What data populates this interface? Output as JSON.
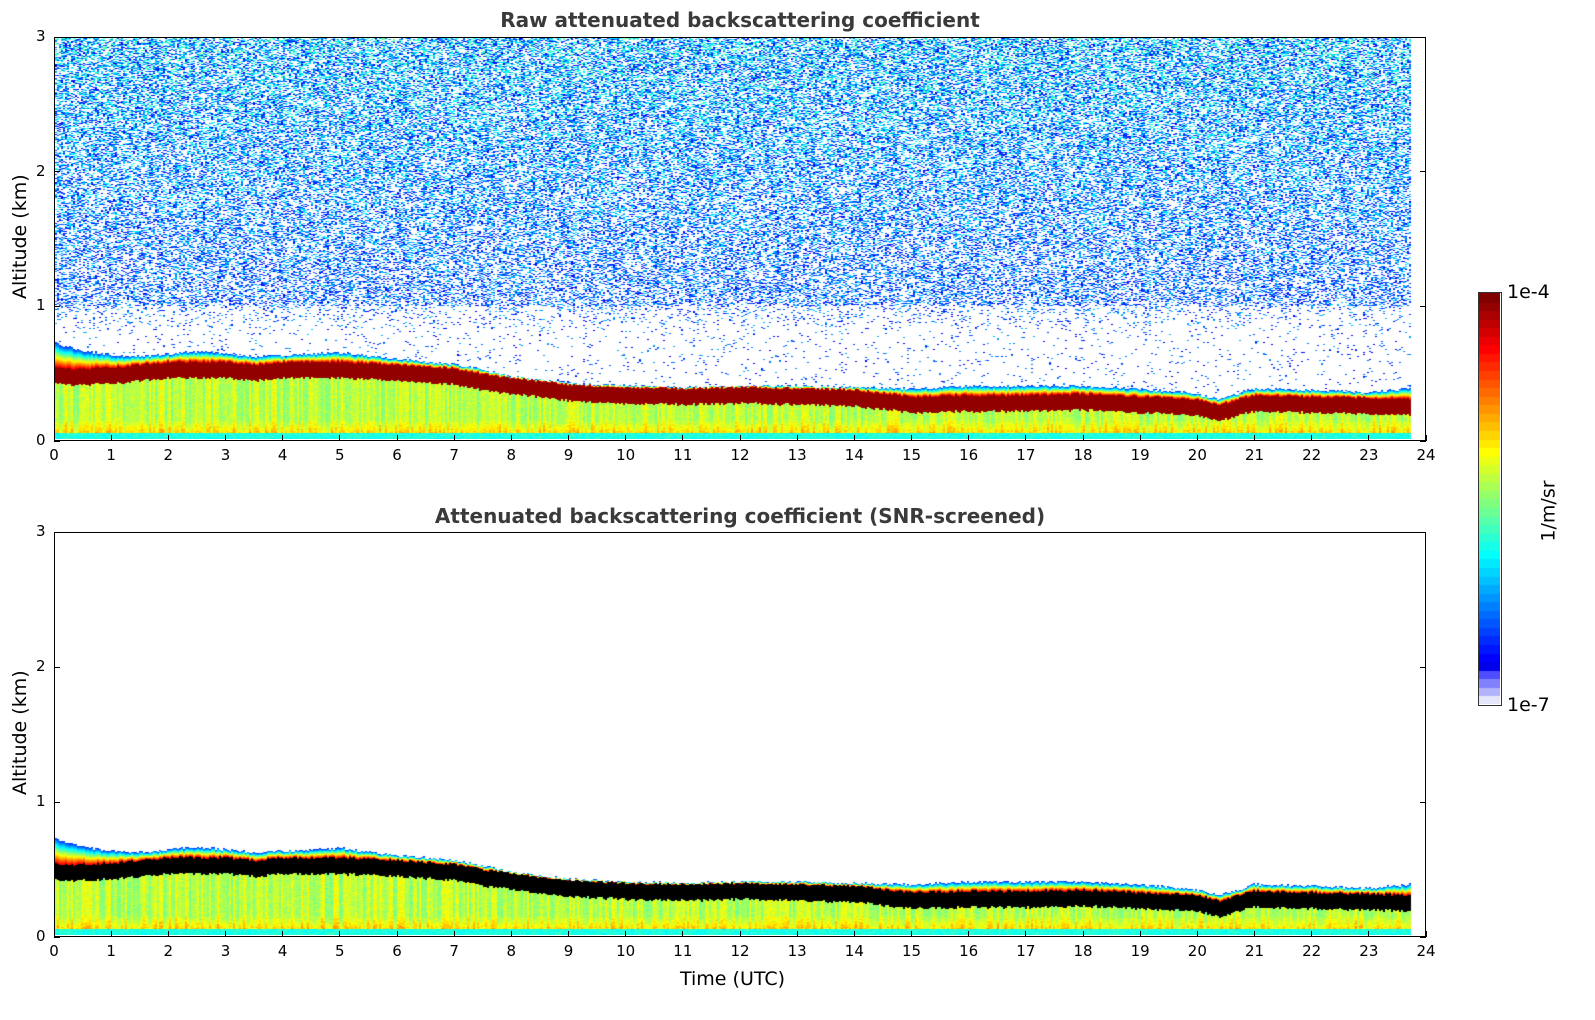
{
  "chart_data": [
    {
      "type": "heatmap",
      "title": "Raw attenuated backscattering coefficient",
      "xlabel": "",
      "ylabel": "Altitude (km)",
      "xlim": [
        0,
        24
      ],
      "ylim": [
        0,
        3
      ],
      "xticks": [
        "0",
        "1",
        "2",
        "3",
        "4",
        "5",
        "6",
        "7",
        "8",
        "9",
        "10",
        "11",
        "12",
        "13",
        "14",
        "15",
        "16",
        "17",
        "18",
        "19",
        "20",
        "21",
        "22",
        "23",
        "24"
      ],
      "yticks": [
        "0",
        "1",
        "2",
        "3"
      ],
      "screened": false,
      "data_end_hour": 23.75,
      "noise_ceiling_km": 3.0
    },
    {
      "type": "heatmap",
      "title": "Attenuated backscattering coefficient (SNR-screened)",
      "xlabel": "Time (UTC)",
      "ylabel": "Altitude (km)",
      "xlim": [
        0,
        24
      ],
      "ylim": [
        0,
        3
      ],
      "xticks": [
        "0",
        "1",
        "2",
        "3",
        "4",
        "5",
        "6",
        "7",
        "8",
        "9",
        "10",
        "11",
        "12",
        "13",
        "14",
        "15",
        "16",
        "17",
        "18",
        "19",
        "20",
        "21",
        "22",
        "23",
        "24"
      ],
      "yticks": [
        "0",
        "1",
        "2",
        "3"
      ],
      "screened": true,
      "data_end_hour": 23.75,
      "noise_ceiling_km": 0.0
    }
  ],
  "layer_profile": {
    "hours": [
      0,
      0.5,
      1,
      1.5,
      2,
      2.5,
      3,
      3.5,
      4,
      5,
      6,
      7,
      7.5,
      8,
      9,
      10,
      11,
      12,
      13,
      14,
      15,
      16,
      17,
      18,
      19,
      20,
      20.4,
      21,
      22,
      23,
      23.75
    ],
    "layer_top_km": [
      0.72,
      0.66,
      0.63,
      0.62,
      0.64,
      0.66,
      0.64,
      0.62,
      0.63,
      0.65,
      0.6,
      0.56,
      0.52,
      0.47,
      0.42,
      0.4,
      0.39,
      0.4,
      0.4,
      0.39,
      0.38,
      0.4,
      0.4,
      0.4,
      0.38,
      0.34,
      0.3,
      0.38,
      0.37,
      0.35,
      0.38
    ],
    "peak_km": [
      0.47,
      0.47,
      0.48,
      0.5,
      0.52,
      0.52,
      0.52,
      0.5,
      0.52,
      0.52,
      0.5,
      0.47,
      0.43,
      0.4,
      0.35,
      0.33,
      0.32,
      0.33,
      0.32,
      0.31,
      0.26,
      0.27,
      0.27,
      0.28,
      0.26,
      0.24,
      0.2,
      0.27,
      0.26,
      0.25,
      0.24
    ]
  },
  "colorbar": {
    "min_label": "1e-7",
    "max_label": "1e-4",
    "unit": "1/m/sr",
    "colormap": "jet",
    "scale": "log",
    "range": [
      1e-07,
      0.0001
    ]
  }
}
